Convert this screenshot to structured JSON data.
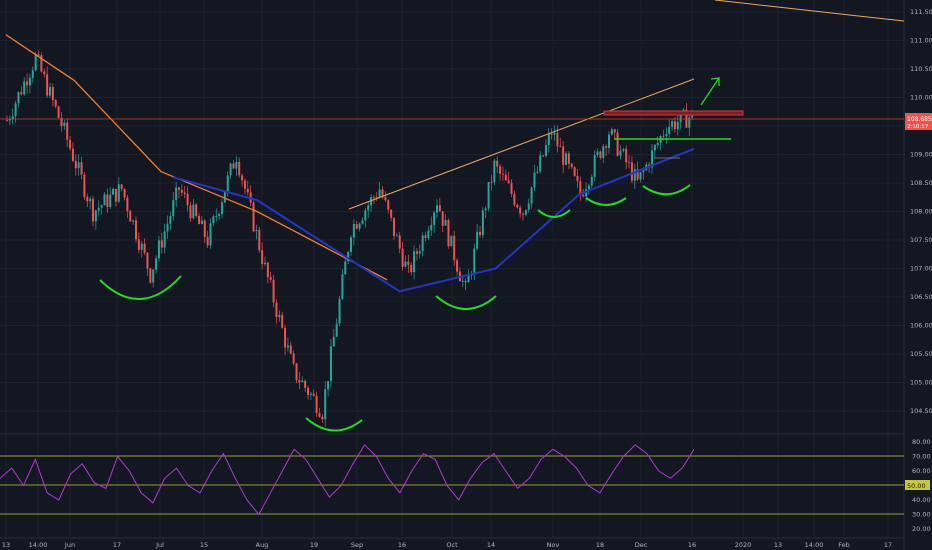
{
  "colors": {
    "background": "#131722",
    "up": "#26a69a",
    "down": "#ef5350",
    "ma_orange": "#f57c2a",
    "ma_blue": "#2136c8",
    "trend_line": "#f0a860",
    "pattern_green": "#22dd22",
    "resistance_red": "#d63a3a",
    "rsi_line": "#b03bd0",
    "rsi_band": "#c8c832",
    "price_tag": "#ef5350",
    "axis_text": "#b2b5be"
  },
  "price_axis": {
    "labels": [
      "111.500",
      "111.000",
      "110.500",
      "110.000",
      "109.500",
      "109.000",
      "108.500",
      "108.000",
      "107.500",
      "107.000",
      "106.500",
      "106.000",
      "105.500",
      "105.000",
      "104.500"
    ],
    "last_price": "108.685",
    "last_time": "2:10:17"
  },
  "rsi_axis": {
    "labels": [
      "80.00",
      "70.00",
      "60.00",
      "50.00",
      "40.00",
      "30.00",
      "20.00"
    ],
    "value": "50.00"
  },
  "time_axis": {
    "labels": [
      "13",
      "14:00",
      "Jun",
      "17",
      "Jul",
      "15",
      "Aug",
      "19",
      "Sep",
      "16",
      "Oct",
      "14",
      "Nov",
      "18",
      "Dec",
      "16",
      "2020",
      "13",
      "14:00",
      "Feb",
      "17"
    ]
  },
  "chart_data": [
    {
      "type": "candlestick",
      "description_series": [
        {
          "name": "",
          "kind": "price",
          "points": [
            {
              "x": "May 13",
              "y": 109.6
            },
            {
              "x": "May 22",
              "y": 110.7
            },
            {
              "x": "May 30",
              "y": 109.4
            },
            {
              "x": "Jun 04",
              "y": 108.0
            },
            {
              "x": "Jun 10",
              "y": 108.4
            },
            {
              "x": "Jun 25",
              "y": 106.9
            },
            {
              "x": "Jul 01",
              "y": 108.4
            },
            {
              "x": "Jul 18",
              "y": 107.5
            },
            {
              "x": "Jul 31",
              "y": 109.0
            },
            {
              "x": "Aug 01",
              "y": 107.0
            },
            {
              "x": "Aug 12",
              "y": 105.2
            },
            {
              "x": "Aug 26",
              "y": 104.5
            },
            {
              "x": "Sep 12",
              "y": 107.7
            },
            {
              "x": "Sep 19",
              "y": 108.4
            },
            {
              "x": "Oct 02",
              "y": 106.9
            },
            {
              "x": "Oct 07",
              "y": 108.2
            },
            {
              "x": "Oct 16",
              "y": 106.6
            },
            {
              "x": "Oct 31",
              "y": 108.8
            },
            {
              "x": "Nov 01",
              "y": 108.0
            },
            {
              "x": "Nov 07",
              "y": 109.4
            },
            {
              "x": "Nov 21",
              "y": 108.3
            },
            {
              "x": "Nov 29",
              "y": 109.4
            },
            {
              "x": "Dec 03",
              "y": 108.5
            },
            {
              "x": "Dec 13",
              "y": 109.5
            },
            {
              "x": "Dec 18",
              "y": 109.7
            }
          ]
        },
        {
          "name": "",
          "kind": "moving_average_long",
          "points": [
            {
              "x": "May 13",
              "y": 111.1
            },
            {
              "x": "Jun 04",
              "y": 110.3
            },
            {
              "x": "Jul 01",
              "y": 108.7
            },
            {
              "x": "Aug 01",
              "y": 108.0
            },
            {
              "x": "Sep 05",
              "y": 107.0
            },
            {
              "x": "Sep 12",
              "y": 106.8
            }
          ]
        },
        {
          "name": "",
          "kind": "moving_average_short",
          "points": [
            {
              "x": "Jul 05",
              "y": 108.6
            },
            {
              "x": "Aug 01",
              "y": 108.2
            },
            {
              "x": "Sep 16",
              "y": 106.6
            },
            {
              "x": "Oct 16",
              "y": 107.0
            },
            {
              "x": "Nov 12",
              "y": 108.3
            },
            {
              "x": "Dec 18",
              "y": 109.1
            }
          ]
        }
      ],
      "yrange": [
        104.2,
        111.7
      ]
    },
    {
      "type": "line",
      "title": "",
      "series": [
        {
          "name": "",
          "values": [
            55,
            62,
            50,
            68,
            45,
            40,
            58,
            65,
            52,
            48,
            70,
            60,
            45,
            38,
            55,
            62,
            50,
            45,
            60,
            72,
            55,
            40,
            30,
            45,
            60,
            75,
            68,
            55,
            42,
            50,
            65,
            78,
            70,
            55,
            45,
            60,
            72,
            68,
            50,
            40,
            55,
            66,
            72,
            60,
            48,
            55,
            68,
            75,
            70,
            62,
            50,
            45,
            58,
            70,
            78,
            72,
            60,
            55,
            62,
            75
          ]
        }
      ],
      "yrange": [
        15,
        85
      ],
      "bands": [
        70,
        50,
        30
      ]
    }
  ]
}
